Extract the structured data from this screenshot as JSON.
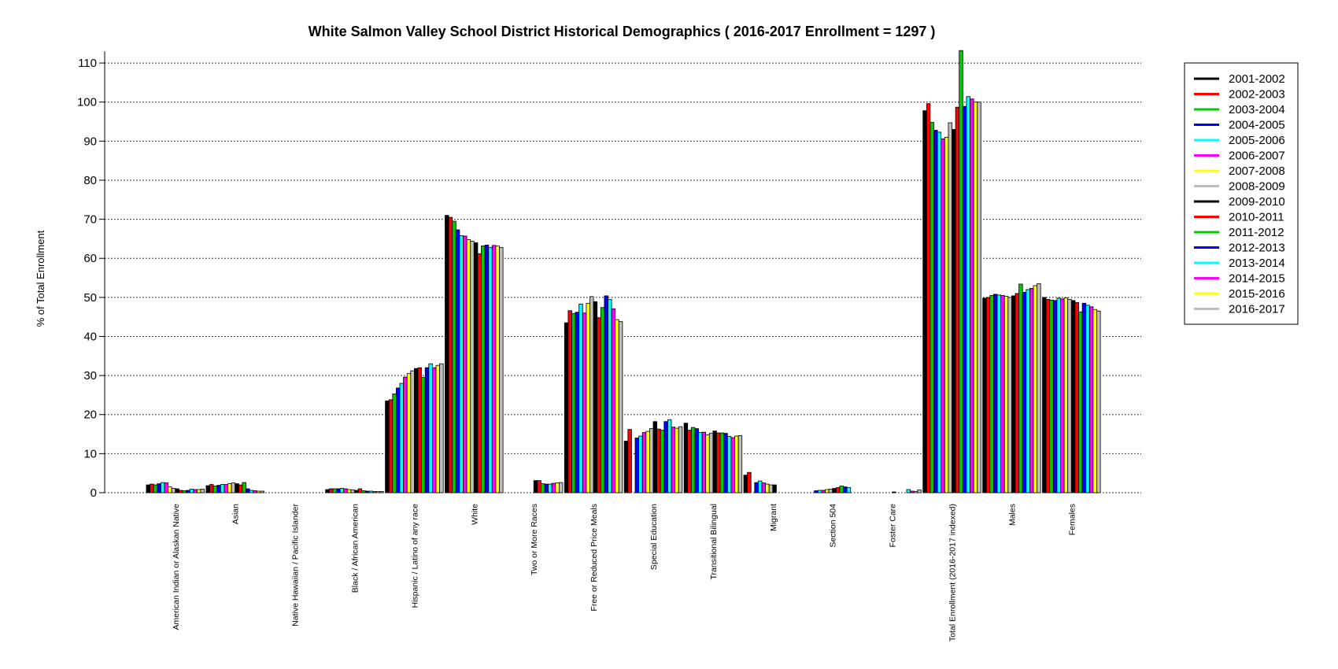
{
  "chart_data": {
    "type": "bar",
    "title": "White Salmon Valley School District Historical Demographics  ( 2016-2017 Enrollment =  1297 )",
    "xlabel": "",
    "ylabel": "% of Total Enrollment",
    "ylim": [
      0,
      113
    ],
    "yticks": [
      0,
      10,
      20,
      30,
      40,
      50,
      60,
      70,
      80,
      90,
      100,
      110
    ],
    "grid": "horizontal-dotted",
    "legend_position": "right",
    "categories": [
      "American Indian or Alaskan Native",
      "Asian",
      "Native Hawaiian / Pacific Islander",
      "Black / African American",
      "Hispanic / Latino of any race",
      "White",
      "Two or More Races",
      "Free or Reduced Price Meals",
      "Special Education",
      "Transitional Bilingual",
      "Migrant",
      "Section 504",
      "Foster Care",
      "Total Enrollment (2016-2017 indexed)",
      "Males",
      "Females"
    ],
    "series": [
      {
        "name": "2001-2002",
        "color": "#000000",
        "values": [
          2.0,
          1.8,
          0,
          0.8,
          23.5,
          71.0,
          0,
          43.5,
          13.2,
          17.8,
          4.5,
          0,
          0,
          97.8,
          49.8,
          50.0
        ]
      },
      {
        "name": "2002-2003",
        "color": "#ff0000",
        "values": [
          2.2,
          2.1,
          0,
          1.0,
          23.8,
          70.5,
          0,
          46.6,
          16.2,
          16.0,
          5.2,
          0,
          0,
          99.6,
          50.0,
          49.5
        ]
      },
      {
        "name": "2003-2004",
        "color": "#00cc00",
        "values": [
          2.0,
          1.7,
          0,
          1.0,
          25.3,
          69.5,
          0,
          45.9,
          0,
          16.7,
          0,
          0,
          0,
          94.8,
          50.5,
          49.3
        ]
      },
      {
        "name": "2004-2005",
        "color": "#0000ff",
        "values": [
          2.3,
          1.9,
          0,
          1.0,
          26.8,
          67.3,
          0,
          46.2,
          14.0,
          16.4,
          2.6,
          0.5,
          0,
          92.8,
          50.8,
          49.2
        ]
      },
      {
        "name": "2005-2006",
        "color": "#00ffff",
        "values": [
          2.6,
          2.1,
          0,
          1.1,
          28.0,
          65.8,
          0,
          48.3,
          14.5,
          15.4,
          3.0,
          0.6,
          0,
          92.3,
          50.6,
          49.8
        ]
      },
      {
        "name": "2006-2007",
        "color": "#ff00ff",
        "values": [
          2.5,
          2.1,
          0,
          1.0,
          29.6,
          65.7,
          0,
          46.0,
          15.4,
          15.5,
          2.5,
          0.6,
          0,
          90.6,
          50.5,
          49.6
        ]
      },
      {
        "name": "2007-2008",
        "color": "#ffff00",
        "values": [
          1.5,
          2.3,
          0,
          0.8,
          30.5,
          64.8,
          0,
          48.5,
          15.7,
          14.8,
          2.2,
          0.8,
          0,
          91.0,
          50.3,
          49.9
        ]
      },
      {
        "name": "2008-2009",
        "color": "#bebebe",
        "values": [
          1.1,
          2.5,
          0,
          0.7,
          31.2,
          64.4,
          0,
          50.2,
          16.4,
          15.2,
          2.0,
          0.9,
          0,
          94.7,
          50.0,
          49.5
        ]
      },
      {
        "name": "2009-2010",
        "color": "#000000",
        "values": [
          1.0,
          2.3,
          0,
          0.6,
          31.8,
          64.0,
          3.1,
          48.9,
          18.2,
          15.8,
          2.0,
          1.1,
          0.2,
          93.0,
          50.4,
          49.2
        ]
      },
      {
        "name": "2010-2011",
        "color": "#ff0000",
        "values": [
          0.6,
          2.0,
          0,
          1.0,
          32.0,
          61.2,
          3.1,
          44.8,
          16.3,
          15.3,
          0,
          1.3,
          0,
          98.7,
          51.0,
          48.7
        ]
      },
      {
        "name": "2011-2012",
        "color": "#00cc00",
        "values": [
          0.5,
          2.6,
          0,
          0.5,
          29.5,
          63.2,
          2.3,
          47.4,
          16.0,
          15.3,
          0,
          1.7,
          0,
          113.2,
          53.4,
          46.3
        ]
      },
      {
        "name": "2012-2013",
        "color": "#0000ff",
        "values": [
          0.6,
          1.0,
          0,
          0.4,
          32.0,
          63.4,
          2.2,
          50.4,
          18.2,
          15.2,
          0,
          1.5,
          0,
          98.9,
          51.3,
          48.5
        ]
      },
      {
        "name": "2013-2014",
        "color": "#00ffff",
        "values": [
          0.9,
          0.6,
          0,
          0.4,
          33.0,
          62.8,
          2.2,
          49.5,
          18.7,
          14.4,
          0,
          1.3,
          0.8,
          101.4,
          52.0,
          48.0
        ]
      },
      {
        "name": "2014-2015",
        "color": "#ff00ff",
        "values": [
          0.8,
          0.5,
          0,
          0.3,
          32.0,
          63.3,
          2.4,
          47.1,
          16.8,
          14.1,
          0,
          0,
          0.4,
          100.8,
          52.3,
          47.6
        ]
      },
      {
        "name": "2015-2016",
        "color": "#ffff00",
        "values": [
          0.8,
          0.4,
          0,
          0.3,
          32.6,
          63.2,
          2.5,
          44.3,
          16.5,
          14.5,
          0,
          0,
          0.3,
          100.0,
          53.0,
          46.9
        ]
      },
      {
        "name": "2016-2017",
        "color": "#bebebe",
        "values": [
          0.9,
          0.4,
          0,
          0.3,
          33.0,
          62.8,
          2.6,
          43.8,
          16.9,
          14.6,
          0,
          0,
          0.7,
          100.0,
          53.5,
          46.5
        ]
      }
    ]
  }
}
